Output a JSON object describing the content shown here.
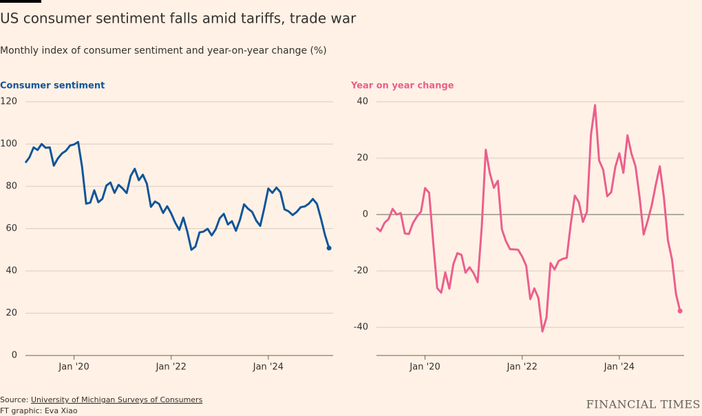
{
  "title": "US consumer sentiment falls amid tariffs, trade war",
  "subtitle": "Monthly index of consumer sentiment and year-on-year change (%)",
  "source_prefix": "Source:",
  "source": "University of Michigan Surveys of Consumers",
  "credit": "FT graphic: Eva Xiao",
  "brand": "FINANCIAL TIMES",
  "chart_data": [
    {
      "type": "line",
      "title": "Consumer sentiment",
      "color": "#0f5499",
      "x": [
        "2019-01",
        "2019-02",
        "2019-03",
        "2019-04",
        "2019-05",
        "2019-06",
        "2019-07",
        "2019-08",
        "2019-09",
        "2019-10",
        "2019-11",
        "2019-12",
        "2020-01",
        "2020-02",
        "2020-03",
        "2020-04",
        "2020-05",
        "2020-06",
        "2020-07",
        "2020-08",
        "2020-09",
        "2020-10",
        "2020-11",
        "2020-12",
        "2021-01",
        "2021-02",
        "2021-03",
        "2021-04",
        "2021-05",
        "2021-06",
        "2021-07",
        "2021-08",
        "2021-09",
        "2021-10",
        "2021-11",
        "2021-12",
        "2022-01",
        "2022-02",
        "2022-03",
        "2022-04",
        "2022-05",
        "2022-06",
        "2022-07",
        "2022-08",
        "2022-09",
        "2022-10",
        "2022-11",
        "2022-12",
        "2023-01",
        "2023-02",
        "2023-03",
        "2023-04",
        "2023-05",
        "2023-06",
        "2023-07",
        "2023-08",
        "2023-09",
        "2023-10",
        "2023-11",
        "2023-12",
        "2024-01",
        "2024-02",
        "2024-03",
        "2024-04",
        "2024-05",
        "2024-06",
        "2024-07",
        "2024-08",
        "2024-09",
        "2024-10",
        "2024-11",
        "2024-12",
        "2025-01",
        "2025-02",
        "2025-03",
        "2025-04"
      ],
      "values": [
        91.2,
        93.8,
        98.4,
        97.2,
        100.0,
        98.2,
        98.4,
        89.8,
        93.2,
        95.5,
        96.8,
        99.3,
        99.8,
        101.0,
        89.1,
        71.8,
        72.3,
        78.1,
        72.5,
        74.1,
        80.4,
        81.8,
        76.9,
        80.7,
        79.0,
        76.8,
        84.9,
        88.3,
        82.9,
        85.5,
        81.2,
        70.3,
        72.8,
        71.7,
        67.4,
        70.6,
        67.2,
        62.8,
        59.4,
        65.2,
        58.4,
        50.0,
        51.5,
        58.2,
        58.6,
        59.9,
        56.8,
        59.7,
        64.9,
        67.0,
        62.0,
        63.5,
        59.0,
        64.2,
        71.5,
        69.4,
        67.9,
        63.8,
        61.3,
        69.7,
        79.0,
        76.9,
        79.4,
        77.2,
        69.1,
        68.2,
        66.4,
        67.9,
        70.1,
        70.5,
        71.8,
        74.0,
        71.7,
        64.7,
        57.0,
        50.8
      ],
      "xlim": [
        "2019-01",
        "2025-05"
      ],
      "xticks": [
        {
          "value": "2020-01",
          "label": "Jan '20"
        },
        {
          "value": "2022-01",
          "label": "Jan '22"
        },
        {
          "value": "2024-01",
          "label": "Jan '24"
        }
      ],
      "ylim": [
        0,
        120
      ],
      "yticks": [
        0,
        20,
        40,
        60,
        80,
        100,
        120
      ],
      "grid": true
    },
    {
      "type": "line",
      "title": "Year on year change",
      "color": "#eb5e8d",
      "x": [
        "2019-01",
        "2019-02",
        "2019-03",
        "2019-04",
        "2019-05",
        "2019-06",
        "2019-07",
        "2019-08",
        "2019-09",
        "2019-10",
        "2019-11",
        "2019-12",
        "2020-01",
        "2020-02",
        "2020-03",
        "2020-04",
        "2020-05",
        "2020-06",
        "2020-07",
        "2020-08",
        "2020-09",
        "2020-10",
        "2020-11",
        "2020-12",
        "2021-01",
        "2021-02",
        "2021-03",
        "2021-04",
        "2021-05",
        "2021-06",
        "2021-07",
        "2021-08",
        "2021-09",
        "2021-10",
        "2021-11",
        "2021-12",
        "2022-01",
        "2022-02",
        "2022-03",
        "2022-04",
        "2022-05",
        "2022-06",
        "2022-07",
        "2022-08",
        "2022-09",
        "2022-10",
        "2022-11",
        "2022-12",
        "2023-01",
        "2023-02",
        "2023-03",
        "2023-04",
        "2023-05",
        "2023-06",
        "2023-07",
        "2023-08",
        "2023-09",
        "2023-10",
        "2023-11",
        "2023-12",
        "2024-01",
        "2024-02",
        "2024-03",
        "2024-04",
        "2024-05",
        "2024-06",
        "2024-07",
        "2024-08",
        "2024-09",
        "2024-10",
        "2024-11",
        "2024-12",
        "2025-01",
        "2025-02",
        "2025-03",
        "2025-04"
      ],
      "values": [
        -4.7,
        -5.9,
        -2.9,
        -1.6,
        2.0,
        0.0,
        0.5,
        -6.7,
        -6.9,
        -3.1,
        -0.7,
        1.0,
        9.4,
        7.7,
        -9.5,
        -26.1,
        -27.7,
        -20.5,
        -26.3,
        -17.5,
        -13.7,
        -14.3,
        -20.6,
        -18.7,
        -20.8,
        -24.0,
        -4.7,
        23.0,
        14.7,
        9.5,
        12.0,
        -5.3,
        -9.5,
        -12.3,
        -12.4,
        -12.5,
        -14.9,
        -18.2,
        -30.0,
        -26.2,
        -29.6,
        -41.5,
        -36.6,
        -17.2,
        -19.5,
        -16.5,
        -15.7,
        -15.4,
        -3.4,
        6.7,
        4.4,
        -2.6,
        1.0,
        28.4,
        38.8,
        19.2,
        15.9,
        6.5,
        7.9,
        16.8,
        21.7,
        14.8,
        28.1,
        21.6,
        17.1,
        6.2,
        -7.1,
        -2.2,
        3.2,
        10.5,
        17.1,
        6.2,
        -9.2,
        -15.9,
        -28.2,
        -34.2
      ],
      "xlim": [
        "2019-01",
        "2025-05"
      ],
      "xticks": [
        {
          "value": "2020-01",
          "label": "Jan '20"
        },
        {
          "value": "2022-01",
          "label": "Jan '22"
        },
        {
          "value": "2024-01",
          "label": "Jan '24"
        }
      ],
      "ylim": [
        -50,
        40
      ],
      "yticks": [
        -40,
        -20,
        0,
        20,
        40
      ],
      "grid": true
    }
  ]
}
